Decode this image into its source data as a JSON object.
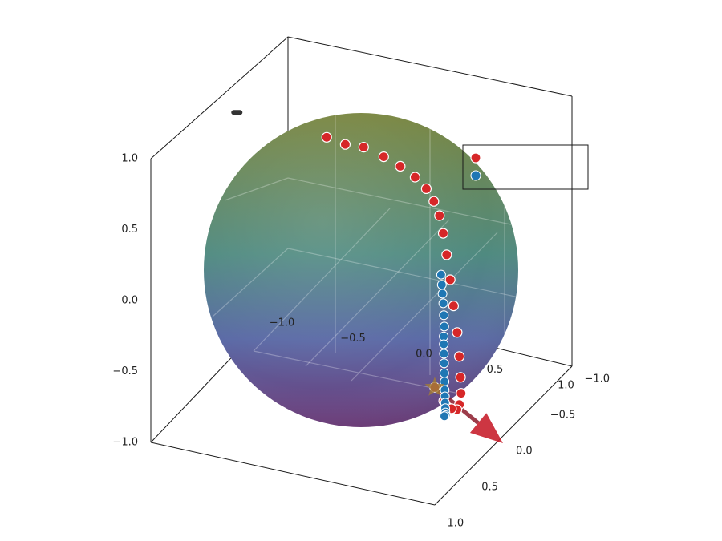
{
  "chart_data": {
    "type": "scatter",
    "projection": "3d",
    "title": "",
    "axes": {
      "x": {
        "range": [
          -1.0,
          1.0
        ],
        "ticks": [
          "−1.0",
          "−0.5",
          "0.0",
          "0.5",
          "1.0"
        ]
      },
      "y": {
        "range": [
          -1.0,
          1.0
        ],
        "ticks": [
          "−1.0",
          "−0.5",
          "0.0",
          "0.5",
          "1.0"
        ]
      },
      "z": {
        "range": [
          -1.0,
          1.0
        ],
        "ticks": [
          "−1.0",
          "−0.5",
          "0.0",
          "0.5",
          "1.0"
        ]
      }
    },
    "sphere": {
      "radius": 1.0,
      "colors": {
        "top": "#7a8640",
        "middle": "#4f8a80",
        "lower": "#5b6aa6",
        "bottom": "#6c3a78"
      }
    },
    "legend": {
      "placement": "top-right",
      "entries": [
        {
          "label": "",
          "color": "#d62728"
        },
        {
          "label": "",
          "color": "#1f77b4"
        }
      ]
    },
    "series": [
      {
        "color": "#d62728",
        "marker": "circle",
        "points": [
          [
            -0.258,
            -0.034,
            0.862
          ],
          [
            -0.138,
            -0.056,
            0.827
          ],
          [
            -0.052,
            -0.146,
            0.781
          ],
          [
            0.049,
            -0.229,
            0.693
          ],
          [
            0.123,
            -0.317,
            0.598
          ],
          [
            0.182,
            -0.412,
            0.486
          ],
          [
            0.217,
            -0.503,
            0.366
          ],
          [
            0.232,
            -0.582,
            0.24
          ],
          [
            0.245,
            -0.637,
            0.114
          ],
          [
            0.264,
            -0.652,
            -0.014
          ],
          [
            0.296,
            -0.636,
            -0.15
          ],
          [
            0.345,
            -0.586,
            -0.29
          ],
          [
            0.407,
            -0.507,
            -0.42
          ],
          [
            0.478,
            -0.413,
            -0.544
          ],
          [
            0.547,
            -0.302,
            -0.642
          ],
          [
            0.618,
            -0.172,
            -0.707
          ],
          [
            0.685,
            -0.042,
            -0.739
          ],
          [
            0.741,
            0.099,
            -0.734
          ],
          [
            0.791,
            0.239,
            -0.687
          ],
          [
            0.823,
            0.383,
            -0.601
          ],
          [
            0.832,
            0.517,
            -0.475
          ],
          [
            0.822,
            0.627,
            -0.326
          ]
        ]
      },
      {
        "color": "#1f77b4",
        "marker": "circle",
        "points": [
          [
            0.256,
            -0.639,
            -0.3
          ],
          [
            0.269,
            -0.622,
            -0.36
          ],
          [
            0.283,
            -0.602,
            -0.41
          ],
          [
            0.302,
            -0.575,
            -0.46
          ],
          [
            0.324,
            -0.538,
            -0.52
          ],
          [
            0.35,
            -0.49,
            -0.57
          ],
          [
            0.37,
            -0.44,
            -0.61
          ],
          [
            0.39,
            -0.4,
            -0.64
          ],
          [
            0.42,
            -0.34,
            -0.67
          ],
          [
            0.45,
            -0.28,
            -0.7
          ],
          [
            0.49,
            -0.2,
            -0.72
          ],
          [
            0.53,
            -0.12,
            -0.73
          ],
          [
            0.57,
            -0.04,
            -0.74
          ],
          [
            0.61,
            0.04,
            -0.735
          ],
          [
            0.65,
            0.12,
            -0.73
          ],
          [
            0.69,
            0.2,
            -0.72
          ],
          [
            0.73,
            0.28,
            -0.7
          ],
          [
            0.77,
            0.36,
            -0.67
          ],
          [
            0.8,
            0.44,
            -0.63
          ]
        ]
      }
    ],
    "annotations": [
      {
        "type": "star",
        "point": [
          0.822,
          0.627,
          -0.326
        ],
        "color": "#a07a3a"
      },
      {
        "type": "vector",
        "from": [
          0.822,
          0.627,
          -0.326
        ],
        "to": [
          1.0,
          0.0,
          -1.0
        ],
        "color": "#8b1a2a"
      },
      {
        "type": "marker",
        "point": [
          -0.85,
          0.05,
          0.95
        ],
        "color": "#333333"
      }
    ]
  }
}
